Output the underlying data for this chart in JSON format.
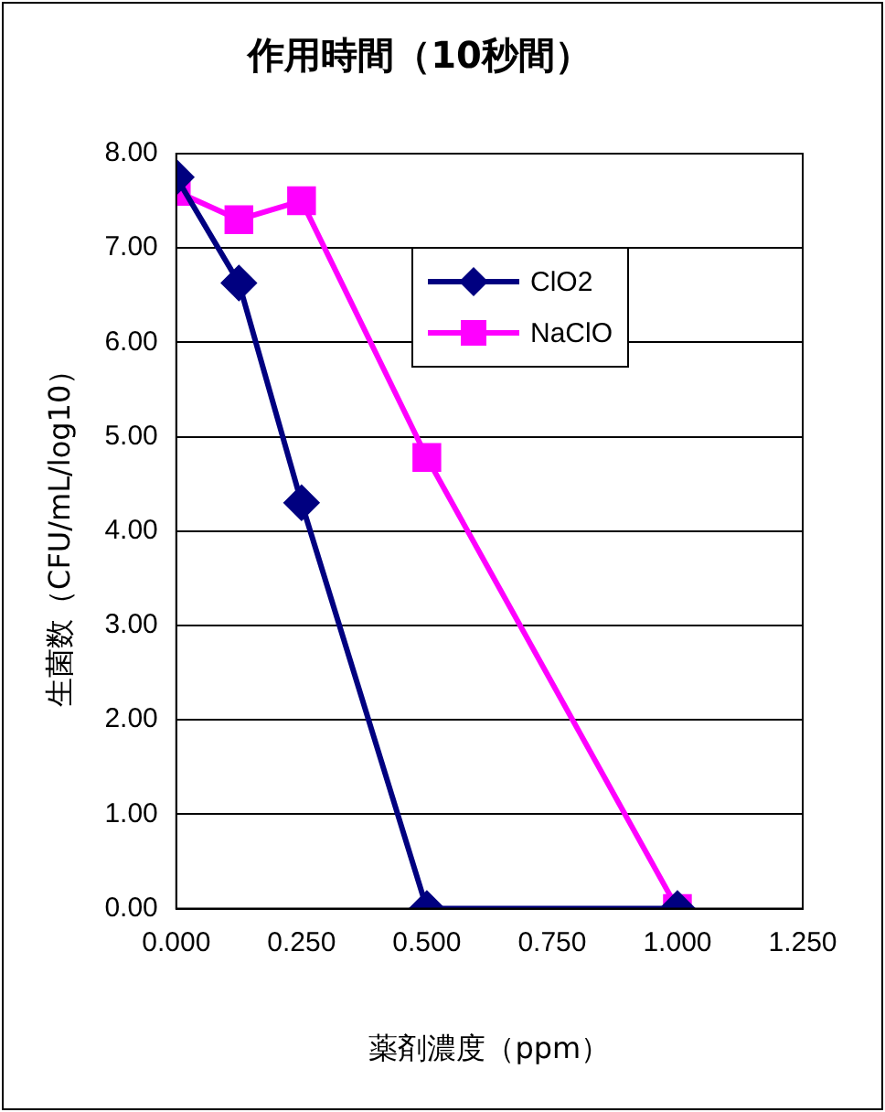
{
  "chart_data": {
    "type": "line",
    "title": "作用時間（10秒間）",
    "xlabel": "薬剤濃度（ppm）",
    "ylabel": "生菌数（CFU/mL/log10）",
    "series": [
      {
        "name": "ClO2",
        "color": "#000080",
        "marker": "diamond",
        "x": [
          0,
          0.125,
          0.25,
          0.5,
          1.0
        ],
        "values": [
          7.75,
          6.63,
          4.3,
          0,
          0
        ]
      },
      {
        "name": "NaClO",
        "color": "#ff00ff",
        "marker": "square",
        "x": [
          0,
          0.125,
          0.25,
          0.5,
          1.0
        ],
        "values": [
          7.6,
          7.3,
          7.5,
          4.78,
          0
        ]
      }
    ],
    "xlim": [
      0,
      1.25
    ],
    "xticks": [
      {
        "value": 0,
        "label": "0.000"
      },
      {
        "value": 0.25,
        "label": "0.250"
      },
      {
        "value": 0.5,
        "label": "0.500"
      },
      {
        "value": 0.75,
        "label": "0.750"
      },
      {
        "value": 1,
        "label": "1.000"
      },
      {
        "value": 1.25,
        "label": "1.250"
      }
    ],
    "ylim": [
      0,
      8
    ],
    "yticks": [
      {
        "value": 0,
        "label": "0.00"
      },
      {
        "value": 1,
        "label": "1.00"
      },
      {
        "value": 2,
        "label": "2.00"
      },
      {
        "value": 3,
        "label": "3.00"
      },
      {
        "value": 4,
        "label": "4.00"
      },
      {
        "value": 5,
        "label": "5.00"
      },
      {
        "value": 6,
        "label": "6.00"
      },
      {
        "value": 7,
        "label": "7.00"
      },
      {
        "value": 8,
        "label": "8.00"
      }
    ],
    "grid": "y",
    "legend": "top right",
    "line_style": "solid"
  }
}
